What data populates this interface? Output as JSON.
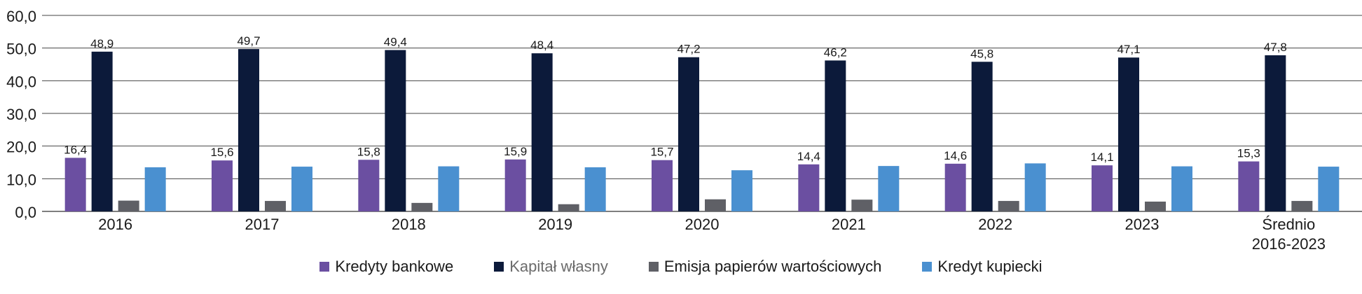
{
  "chart_data": {
    "type": "bar",
    "categories": [
      "2016",
      "2017",
      "2018",
      "2019",
      "2020",
      "2021",
      "2022",
      "2023",
      "Średnio\n2016-2023"
    ],
    "series": [
      {
        "name": "Kredyty bankowe",
        "color": "#6b4fa1",
        "values": [
          16.4,
          15.6,
          15.8,
          15.9,
          15.7,
          14.4,
          14.6,
          14.1,
          15.3
        ],
        "labels": [
          "16,4",
          "15,6",
          "15,8",
          "15,9",
          "15,7",
          "14,4",
          "14,6",
          "14,1",
          "15,3"
        ]
      },
      {
        "name": "Kapitał własny",
        "color": "#0c1a3a",
        "values": [
          48.9,
          49.7,
          49.4,
          48.4,
          47.2,
          46.2,
          45.8,
          47.1,
          47.8
        ],
        "labels": [
          "48,9",
          "49,7",
          "49,4",
          "48,4",
          "47,2",
          "46,2",
          "45,8",
          "47,1",
          "47,8"
        ]
      },
      {
        "name": "Emisja papierów wartościowych",
        "color": "#5f6066",
        "values": [
          3.3,
          3.2,
          2.6,
          2.2,
          3.7,
          3.6,
          3.2,
          3.0,
          3.2
        ]
      },
      {
        "name": "Kredyt kupiecki",
        "color": "#4a90d0",
        "values": [
          13.5,
          13.7,
          13.8,
          13.5,
          12.6,
          13.9,
          14.7,
          13.8,
          13.7
        ]
      }
    ],
    "ylim": [
      0,
      60
    ],
    "yticks": [
      0,
      10,
      20,
      30,
      40,
      50,
      60
    ],
    "ytick_labels": [
      "0,0",
      "10,0",
      "20,0",
      "30,0",
      "40,0",
      "50,0",
      "60,0"
    ],
    "grid": true,
    "legend_position": "bottom"
  }
}
